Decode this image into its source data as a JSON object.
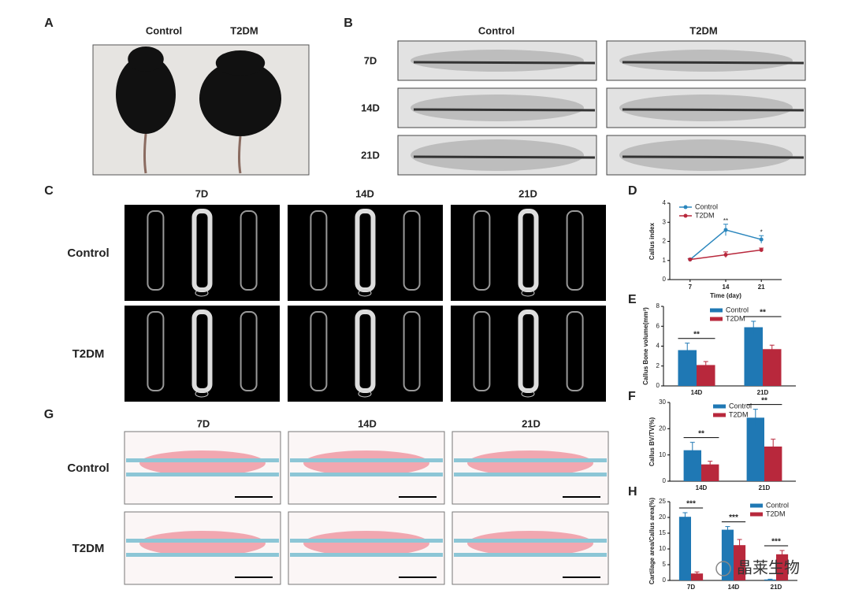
{
  "panels": {
    "A": {
      "label": "A",
      "columns": [
        "Control",
        "T2DM"
      ]
    },
    "B": {
      "label": "B",
      "columns": [
        "Control",
        "T2DM"
      ],
      "rows": [
        "7D",
        "14D",
        "21D"
      ]
    },
    "C": {
      "label": "C",
      "columns": [
        "7D",
        "14D",
        "21D"
      ],
      "rows": [
        "Control",
        "T2DM"
      ]
    },
    "G": {
      "label": "G",
      "columns": [
        "7D",
        "14D",
        "21D"
      ],
      "rows": [
        "Control",
        "T2DM"
      ]
    }
  },
  "watermark": "晶莱生物",
  "chart_data": [
    {
      "type": "line",
      "panel_label": "D",
      "y_label": "Callus index",
      "x_label": "Time (day)",
      "x": [
        7,
        14,
        21
      ],
      "xlim": [
        3,
        25
      ],
      "xticks": [
        7,
        14,
        21
      ],
      "ylim": [
        0,
        4
      ],
      "yticks": [
        0,
        1,
        2,
        3,
        4
      ],
      "legend": "upper left",
      "series": [
        {
          "name": "Control",
          "color": "#2a86bd",
          "values": [
            1.05,
            2.6,
            2.1
          ],
          "errors": [
            0.05,
            0.3,
            0.2
          ]
        },
        {
          "name": "T2DM",
          "color": "#b8283c",
          "values": [
            1.05,
            1.3,
            1.55
          ],
          "errors": [
            0.05,
            0.15,
            0.1
          ]
        }
      ],
      "annotations": [
        {
          "x": 14,
          "text": "**"
        },
        {
          "x": 21,
          "text": "*"
        }
      ]
    },
    {
      "type": "bar",
      "panel_label": "E",
      "y_label": "Callus Bone volume(mm³)",
      "categories": [
        "14D",
        "21D"
      ],
      "ylim": [
        0,
        8
      ],
      "yticks": [
        0,
        2,
        4,
        6,
        8
      ],
      "legend": "upper center",
      "series": [
        {
          "name": "Control",
          "color": "#1f78b4",
          "values": [
            3.6,
            5.9
          ],
          "errors": [
            0.7,
            0.6
          ]
        },
        {
          "name": "T2DM",
          "color": "#b8283c",
          "values": [
            2.1,
            3.7
          ],
          "errors": [
            0.35,
            0.4
          ]
        }
      ],
      "significance": [
        "**",
        "**"
      ]
    },
    {
      "type": "bar",
      "panel_label": "F",
      "y_label": "Callus BV/TV(%)",
      "categories": [
        "14D",
        "21D"
      ],
      "ylim": [
        0,
        30
      ],
      "yticks": [
        0,
        10,
        20,
        30
      ],
      "legend": "upper center",
      "series": [
        {
          "name": "Control",
          "color": "#1f78b4",
          "values": [
            11.8,
            24.2
          ],
          "errors": [
            3.0,
            3.2
          ]
        },
        {
          "name": "T2DM",
          "color": "#b8283c",
          "values": [
            6.4,
            13.2
          ],
          "errors": [
            1.2,
            2.8
          ]
        }
      ],
      "significance": [
        "**",
        "**"
      ]
    },
    {
      "type": "bar",
      "panel_label": "H",
      "y_label": "Cartilage area/Callus area(%)",
      "categories": [
        "7D",
        "14D",
        "21D"
      ],
      "ylim": [
        0,
        25
      ],
      "yticks": [
        0,
        5,
        10,
        15,
        20,
        25
      ],
      "legend": "upper right",
      "series": [
        {
          "name": "Control",
          "color": "#1f78b4",
          "values": [
            20.2,
            16.1,
            0.3
          ],
          "errors": [
            1.3,
            1.0,
            0.1
          ]
        },
        {
          "name": "T2DM",
          "color": "#b8283c",
          "values": [
            2.2,
            11.2,
            8.3
          ],
          "errors": [
            0.5,
            1.8,
            1.2
          ]
        }
      ],
      "significance": [
        "***",
        "***",
        "***"
      ]
    }
  ]
}
